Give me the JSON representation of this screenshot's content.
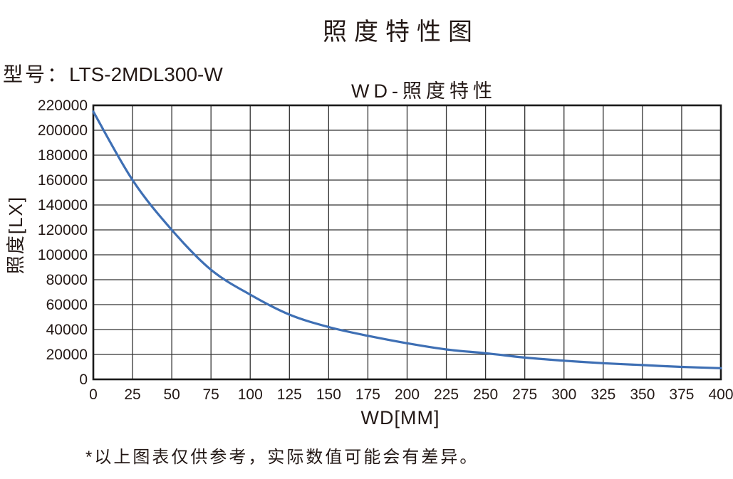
{
  "page": {
    "title": "照度特性图",
    "model_label": "型号：",
    "model_value": "LTS-2MDL300-W",
    "footnote": "*以上图表仅供参考，实际数值可能会有差异。"
  },
  "chart_data": {
    "type": "line",
    "title": "WD-照度特性",
    "xlabel": "WD[MM]",
    "ylabel": "照度[LX]",
    "x": [
      0,
      25,
      50,
      75,
      100,
      125,
      150,
      175,
      200,
      225,
      250,
      275,
      300,
      325,
      350,
      375,
      400
    ],
    "series": [
      {
        "name": "照度",
        "values": [
          215000,
          160000,
          120000,
          88000,
          68000,
          52000,
          42000,
          35000,
          29000,
          24000,
          21000,
          17500,
          15000,
          13000,
          11500,
          10000,
          9000
        ]
      }
    ],
    "xlim": [
      0,
      400
    ],
    "ylim": [
      0,
      220000
    ],
    "x_tick_step": 25,
    "y_tick_step": 20000,
    "grid": true,
    "legend": "none",
    "line_color": "#3E6FB4",
    "grid_color": "#333333",
    "border_color": "#1a1a1a",
    "text_color": "#231815"
  }
}
